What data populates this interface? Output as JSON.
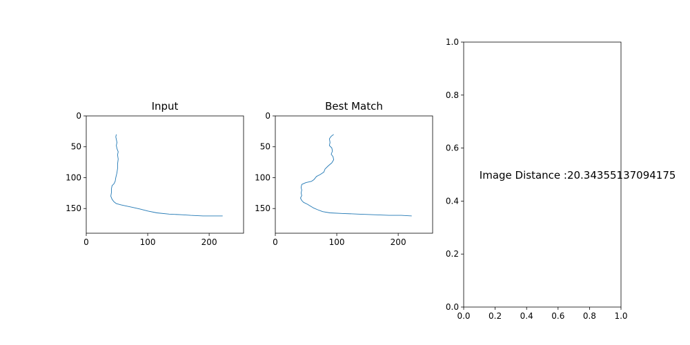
{
  "chart_data": [
    {
      "type": "line",
      "title": "Input",
      "xlabel": "",
      "ylabel": "",
      "xlim": [
        0,
        256
      ],
      "ylim": [
        190,
        0
      ],
      "xticks": [
        0,
        100,
        200
      ],
      "yticks": [
        0,
        50,
        100,
        150
      ],
      "grid": false,
      "color": "#1f77b4",
      "series": [
        {
          "points": [
            [
              49,
              30
            ],
            [
              48,
              34
            ],
            [
              49,
              38
            ],
            [
              50,
              43
            ],
            [
              49,
              48
            ],
            [
              50,
              53
            ],
            [
              52,
              58
            ],
            [
              51,
              63
            ],
            [
              52,
              70
            ],
            [
              51,
              78
            ],
            [
              51,
              85
            ],
            [
              50,
              92
            ],
            [
              48,
              100
            ],
            [
              47,
              106
            ],
            [
              45,
              110
            ],
            [
              42,
              113
            ],
            [
              41,
              118
            ],
            [
              41,
              124
            ],
            [
              40,
              130
            ],
            [
              42,
              135
            ],
            [
              45,
              139
            ],
            [
              49,
              142
            ],
            [
              56,
              144
            ],
            [
              65,
              146
            ],
            [
              75,
              148
            ],
            [
              88,
              151
            ],
            [
              100,
              154
            ],
            [
              115,
              157
            ],
            [
              135,
              159
            ],
            [
              155,
              160
            ],
            [
              170,
              161
            ],
            [
              190,
              162
            ],
            [
              210,
              162
            ],
            [
              222,
              162
            ]
          ]
        }
      ]
    },
    {
      "type": "line",
      "title": "Best Match",
      "xlabel": "",
      "ylabel": "",
      "xlim": [
        0,
        256
      ],
      "ylim": [
        190,
        0
      ],
      "xticks": [
        0,
        100,
        200
      ],
      "yticks": [
        0,
        50,
        100,
        150
      ],
      "grid": false,
      "color": "#1f77b4",
      "series": [
        {
          "points": [
            [
              95,
              30
            ],
            [
              91,
              33
            ],
            [
              88,
              37
            ],
            [
              89,
              43
            ],
            [
              88,
              48
            ],
            [
              92,
              52
            ],
            [
              93,
              57
            ],
            [
              91,
              62
            ],
            [
              94,
              66
            ],
            [
              95,
              71
            ],
            [
              92,
              76
            ],
            [
              86,
              81
            ],
            [
              81,
              86
            ],
            [
              79,
              91
            ],
            [
              73,
              95
            ],
            [
              67,
              98
            ],
            [
              63,
              103
            ],
            [
              59,
              106
            ],
            [
              50,
              108
            ],
            [
              43,
              111
            ],
            [
              42,
              116
            ],
            [
              43,
              120
            ],
            [
              42,
              125
            ],
            [
              43,
              129
            ],
            [
              41,
              133
            ],
            [
              43,
              137
            ],
            [
              46,
              140
            ],
            [
              52,
              143
            ],
            [
              57,
              146
            ],
            [
              62,
              149
            ],
            [
              69,
              152
            ],
            [
              77,
              155
            ],
            [
              89,
              157
            ],
            [
              110,
              158
            ],
            [
              135,
              159
            ],
            [
              160,
              160
            ],
            [
              185,
              161
            ],
            [
              205,
              161
            ],
            [
              222,
              162
            ]
          ]
        }
      ]
    },
    {
      "type": "line",
      "title": "",
      "xlabel": "",
      "ylabel": "",
      "xlim": [
        0,
        1
      ],
      "ylim": [
        0,
        1
      ],
      "xticks": [
        "0.0",
        "0.2",
        "0.4",
        "0.6",
        "0.8",
        "1.0"
      ],
      "yticks": [
        "0.0",
        "0.2",
        "0.4",
        "0.6",
        "0.8",
        "1.0"
      ],
      "grid": false,
      "annotation": "Image Distance :20.34355137094175",
      "series": []
    }
  ]
}
